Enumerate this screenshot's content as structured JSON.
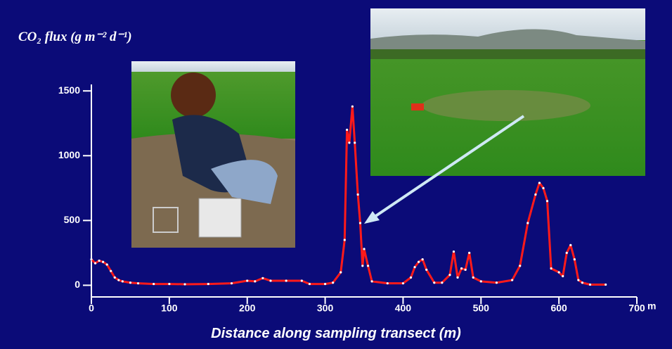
{
  "chart_data": {
    "type": "line",
    "title": "CO₂ flux (g m⁻² d⁻¹)",
    "x_label": "Distance along sampling transect (m)",
    "x_unit": "m",
    "xlim": [
      0,
      700
    ],
    "xticks": [
      0,
      100,
      200,
      300,
      400,
      500,
      600,
      700
    ],
    "ylim": [
      -90,
      1550
    ],
    "yticks": [
      0,
      500,
      1000,
      1500
    ],
    "series": [
      {
        "color": "#ff1a1a",
        "x": [
          0,
          5,
          10,
          15,
          20,
          25,
          30,
          35,
          40,
          50,
          60,
          80,
          100,
          120,
          150,
          180,
          200,
          210,
          220,
          230,
          250,
          270,
          280,
          300,
          310,
          320,
          325,
          328,
          331,
          335,
          338,
          342,
          345,
          348,
          350,
          355,
          360,
          380,
          400,
          410,
          415,
          420,
          425,
          430,
          440,
          450,
          460,
          465,
          470,
          475,
          480,
          485,
          490,
          500,
          520,
          540,
          550,
          560,
          570,
          575,
          580,
          585,
          590,
          600,
          605,
          610,
          615,
          620,
          625,
          630,
          640,
          660
        ],
        "values": [
          200,
          170,
          190,
          180,
          160,
          110,
          60,
          40,
          30,
          20,
          15,
          10,
          10,
          8,
          10,
          15,
          35,
          30,
          55,
          35,
          35,
          35,
          10,
          10,
          20,
          100,
          350,
          1200,
          1100,
          1380,
          1100,
          700,
          480,
          150,
          280,
          150,
          30,
          15,
          15,
          60,
          140,
          180,
          200,
          120,
          20,
          20,
          80,
          260,
          60,
          130,
          120,
          250,
          60,
          30,
          20,
          40,
          150,
          480,
          700,
          790,
          750,
          650,
          130,
          100,
          70,
          250,
          310,
          200,
          40,
          20,
          5,
          5
        ]
      }
    ]
  }
}
